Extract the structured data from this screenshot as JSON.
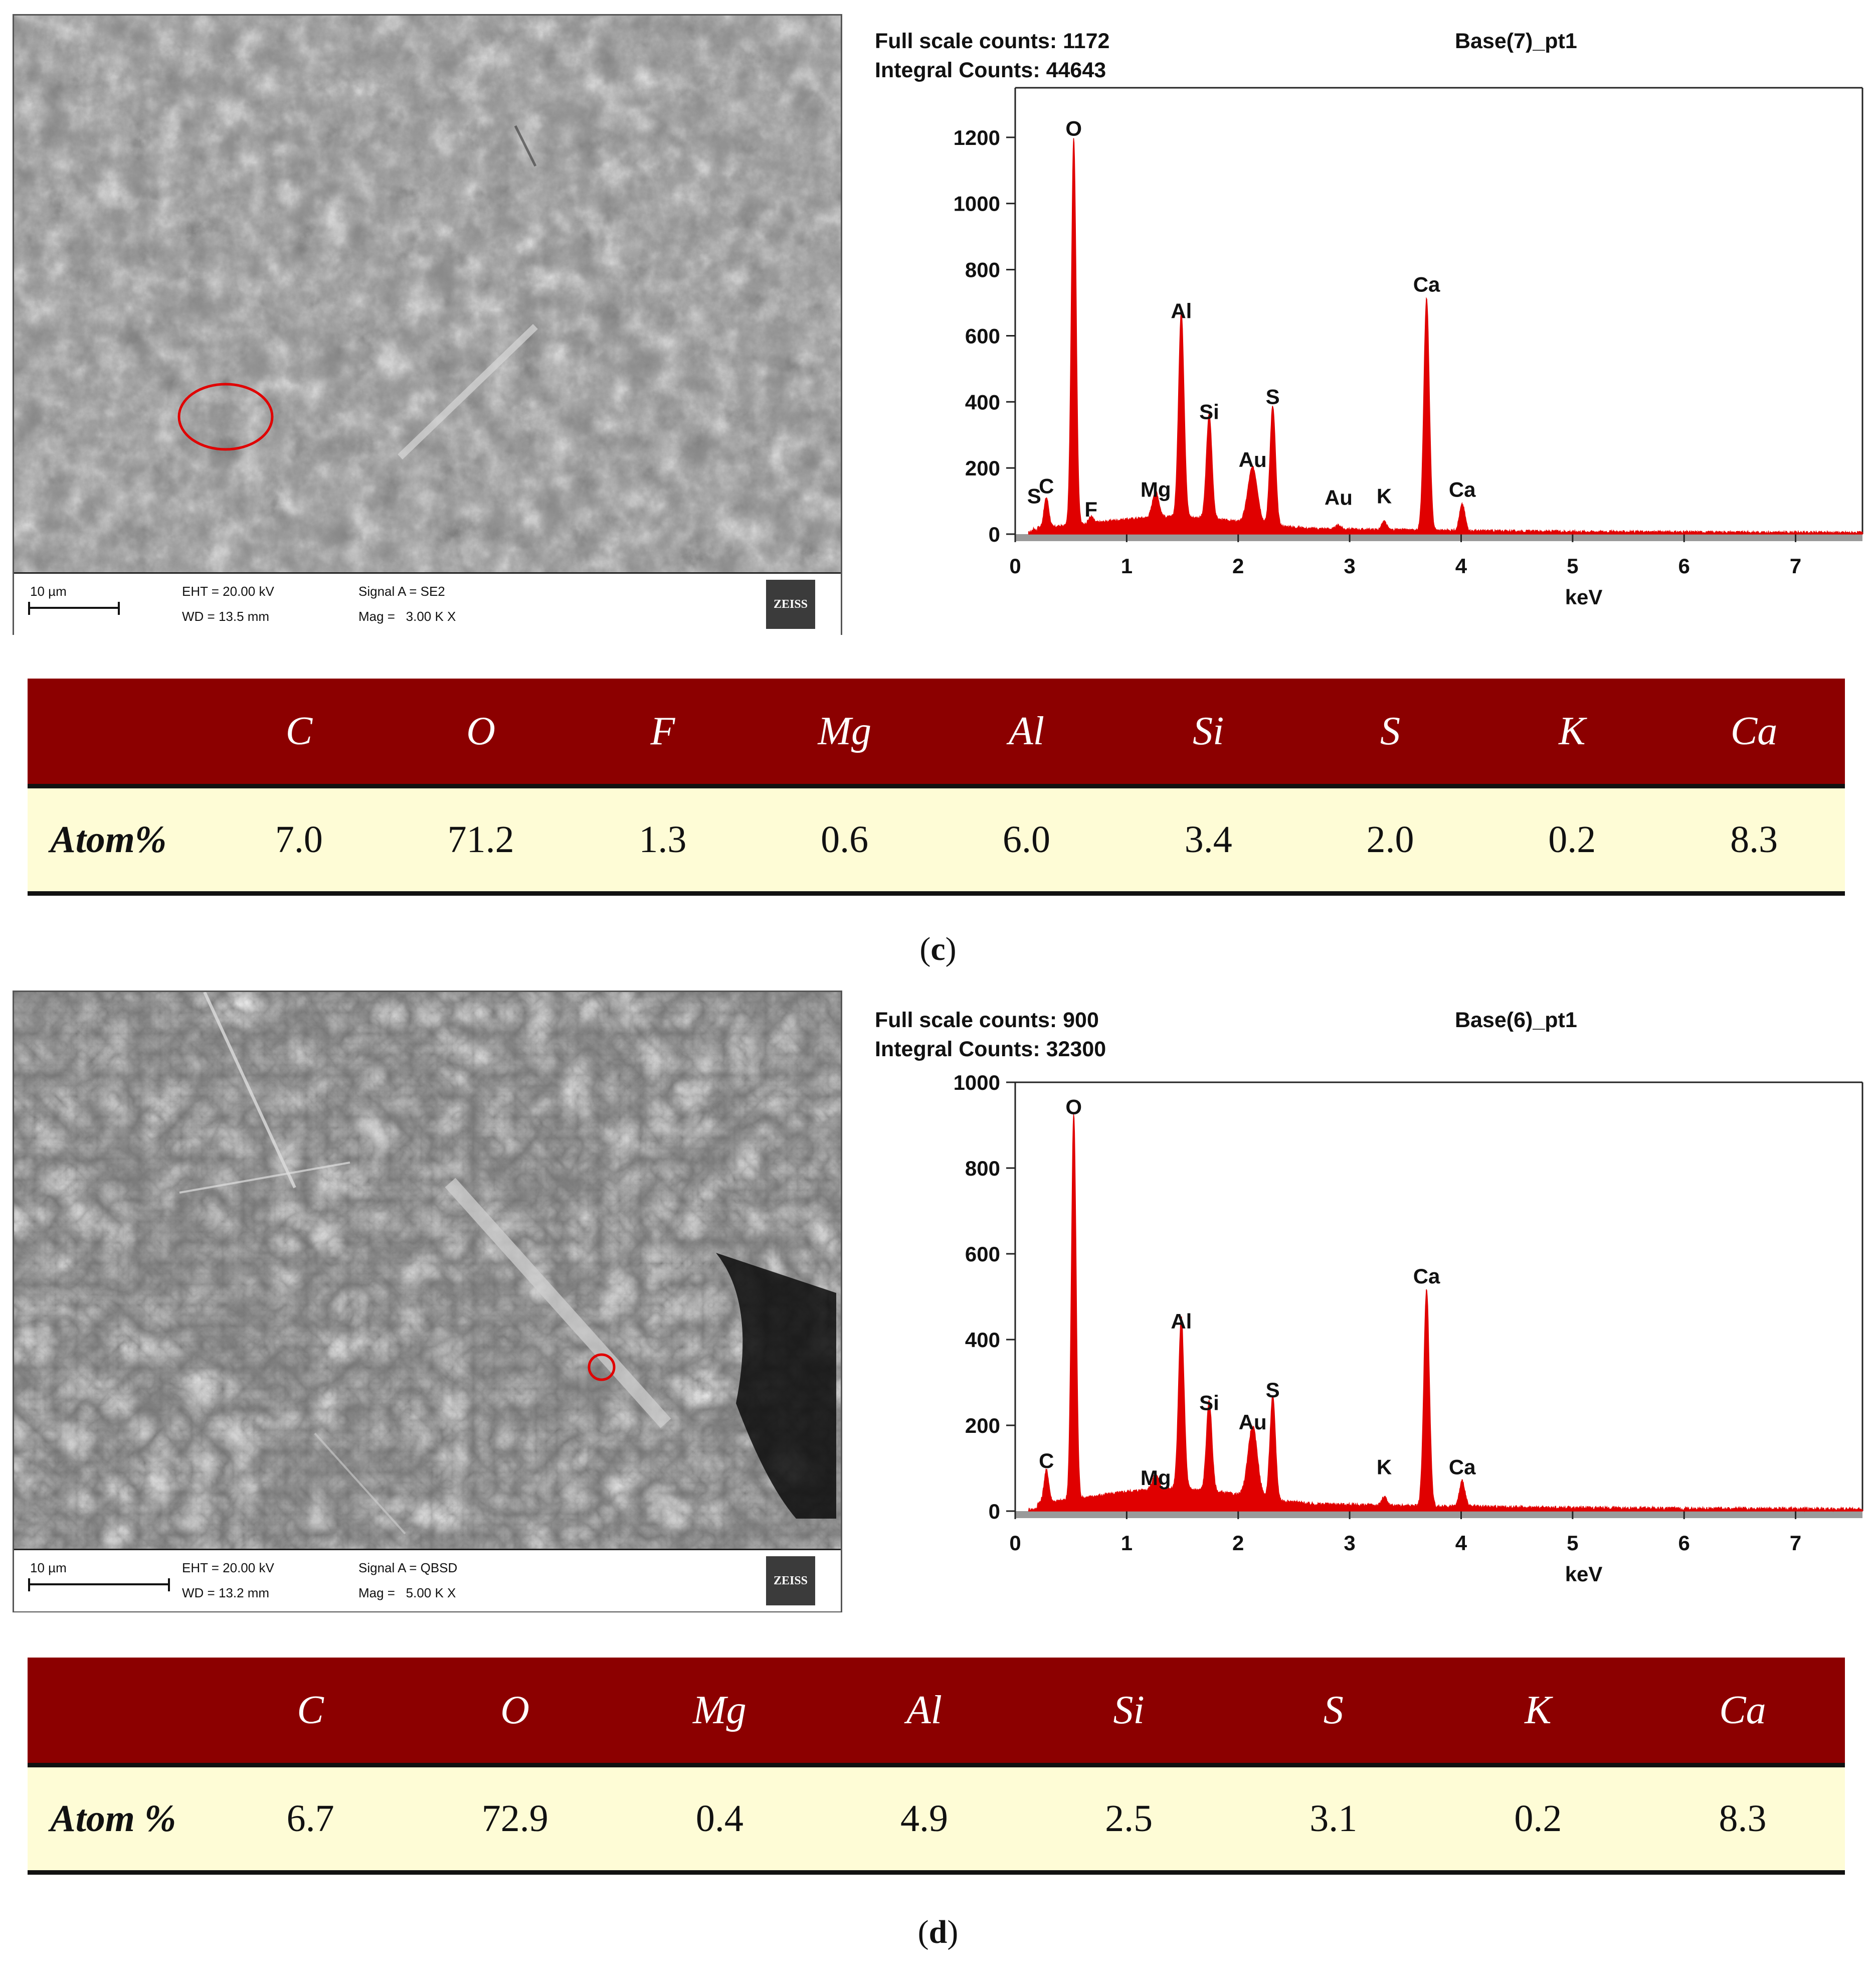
{
  "panels": [
    {
      "sem": {
        "scale_label": "10 µm",
        "eht": "EHT = 20.00 kV",
        "wd": "WD = 13.5 mm",
        "signal": "Signal A = SE2",
        "mag": "Mag =   3.00 K X",
        "logo": "ZEISS",
        "marker": "red-circle"
      },
      "eds_header": {
        "full_scale": "Full scale counts: 1172",
        "integral": "Integral Counts: 44643",
        "sample": "Base(7)_pt1"
      },
      "chart_data": {
        "type": "line",
        "xlabel": "keV",
        "ylabel": "",
        "xlim": [
          0,
          7.6
        ],
        "ylim": [
          0,
          1350
        ],
        "yticks": [
          0,
          200,
          400,
          600,
          800,
          1000,
          1200
        ],
        "xticks": [
          0,
          1,
          2,
          3,
          4,
          5,
          6,
          7
        ],
        "color": "#e00000",
        "peaks": [
          {
            "label": "S",
            "x": 0.17,
            "y": 12,
            "label_y": 60,
            "width": 0.025
          },
          {
            "label": "C",
            "x": 0.28,
            "y": 90,
            "width": 0.03
          },
          {
            "label": "O",
            "x": 0.525,
            "y": 1172,
            "width": 0.03
          },
          {
            "label": "F",
            "x": 0.68,
            "y": 20,
            "width": 0.03
          },
          {
            "label": "Mg",
            "x": 1.26,
            "y": 80,
            "width": 0.04
          },
          {
            "label": "Al",
            "x": 1.49,
            "y": 620,
            "width": 0.035
          },
          {
            "label": "Si",
            "x": 1.74,
            "y": 315,
            "width": 0.035
          },
          {
            "label": "Au",
            "x": 2.13,
            "y": 170,
            "width": 0.06
          },
          {
            "label": "S",
            "x": 2.31,
            "y": 360,
            "width": 0.035
          },
          {
            "label": "Au",
            "x": 2.9,
            "y": 12,
            "label_y": 55,
            "width": 0.03
          },
          {
            "label": "K",
            "x": 3.31,
            "y": 25,
            "label_y": 60,
            "width": 0.03
          },
          {
            "label": "Ca",
            "x": 3.69,
            "y": 700,
            "width": 0.035
          },
          {
            "label": "Ca",
            "x": 4.01,
            "y": 80,
            "width": 0.035
          }
        ]
      },
      "table": {
        "row_label": "Atom%",
        "elements": [
          "C",
          "O",
          "F",
          "Mg",
          "Al",
          "Si",
          "S",
          "K",
          "Ca"
        ],
        "values": [
          "7.0",
          "71.2",
          "1.3",
          "0.6",
          "6.0",
          "3.4",
          "2.0",
          "0.2",
          "8.3"
        ]
      },
      "caption_letter": "c"
    },
    {
      "sem": {
        "scale_label": "10 µm",
        "eht": "EHT = 20.00 kV",
        "wd": "WD = 13.2 mm",
        "signal": "Signal A = QBSD",
        "mag": "Mag =   5.00 K X",
        "logo": "ZEISS",
        "marker": "red-circle"
      },
      "eds_header": {
        "full_scale": "Full scale counts: 900",
        "integral": "Integral Counts: 32300",
        "sample": "Base(6)_pt1"
      },
      "chart_data": {
        "type": "line",
        "xlabel": "keV",
        "ylabel": "",
        "xlim": [
          0,
          7.6
        ],
        "ylim": [
          0,
          1000
        ],
        "yticks": [
          0,
          200,
          400,
          600,
          800,
          1000
        ],
        "xticks": [
          0,
          1,
          2,
          3,
          4,
          5,
          6,
          7
        ],
        "color": "#e00000",
        "peaks": [
          {
            "label": "C",
            "x": 0.28,
            "y": 75,
            "width": 0.03
          },
          {
            "label": "O",
            "x": 0.525,
            "y": 900,
            "width": 0.03
          },
          {
            "label": "Mg",
            "x": 1.26,
            "y": 35,
            "width": 0.04
          },
          {
            "label": "Al",
            "x": 1.49,
            "y": 400,
            "width": 0.035
          },
          {
            "label": "Si",
            "x": 1.74,
            "y": 210,
            "width": 0.035
          },
          {
            "label": "Au",
            "x": 2.13,
            "y": 165,
            "width": 0.06
          },
          {
            "label": "S",
            "x": 2.31,
            "y": 240,
            "width": 0.035
          },
          {
            "label": "K",
            "x": 3.31,
            "y": 20,
            "label_y": 60,
            "width": 0.03
          },
          {
            "label": "Ca",
            "x": 3.69,
            "y": 505,
            "width": 0.035
          },
          {
            "label": "Ca",
            "x": 4.01,
            "y": 60,
            "width": 0.035
          }
        ]
      },
      "table": {
        "row_label": "Atom %",
        "elements": [
          "C",
          "O",
          "Mg",
          "Al",
          "Si",
          "S",
          "K",
          "Ca"
        ],
        "values": [
          "6.7",
          "72.9",
          "0.4",
          "4.9",
          "2.5",
          "3.1",
          "0.2",
          "8.3"
        ]
      },
      "caption_letter": "d"
    }
  ]
}
